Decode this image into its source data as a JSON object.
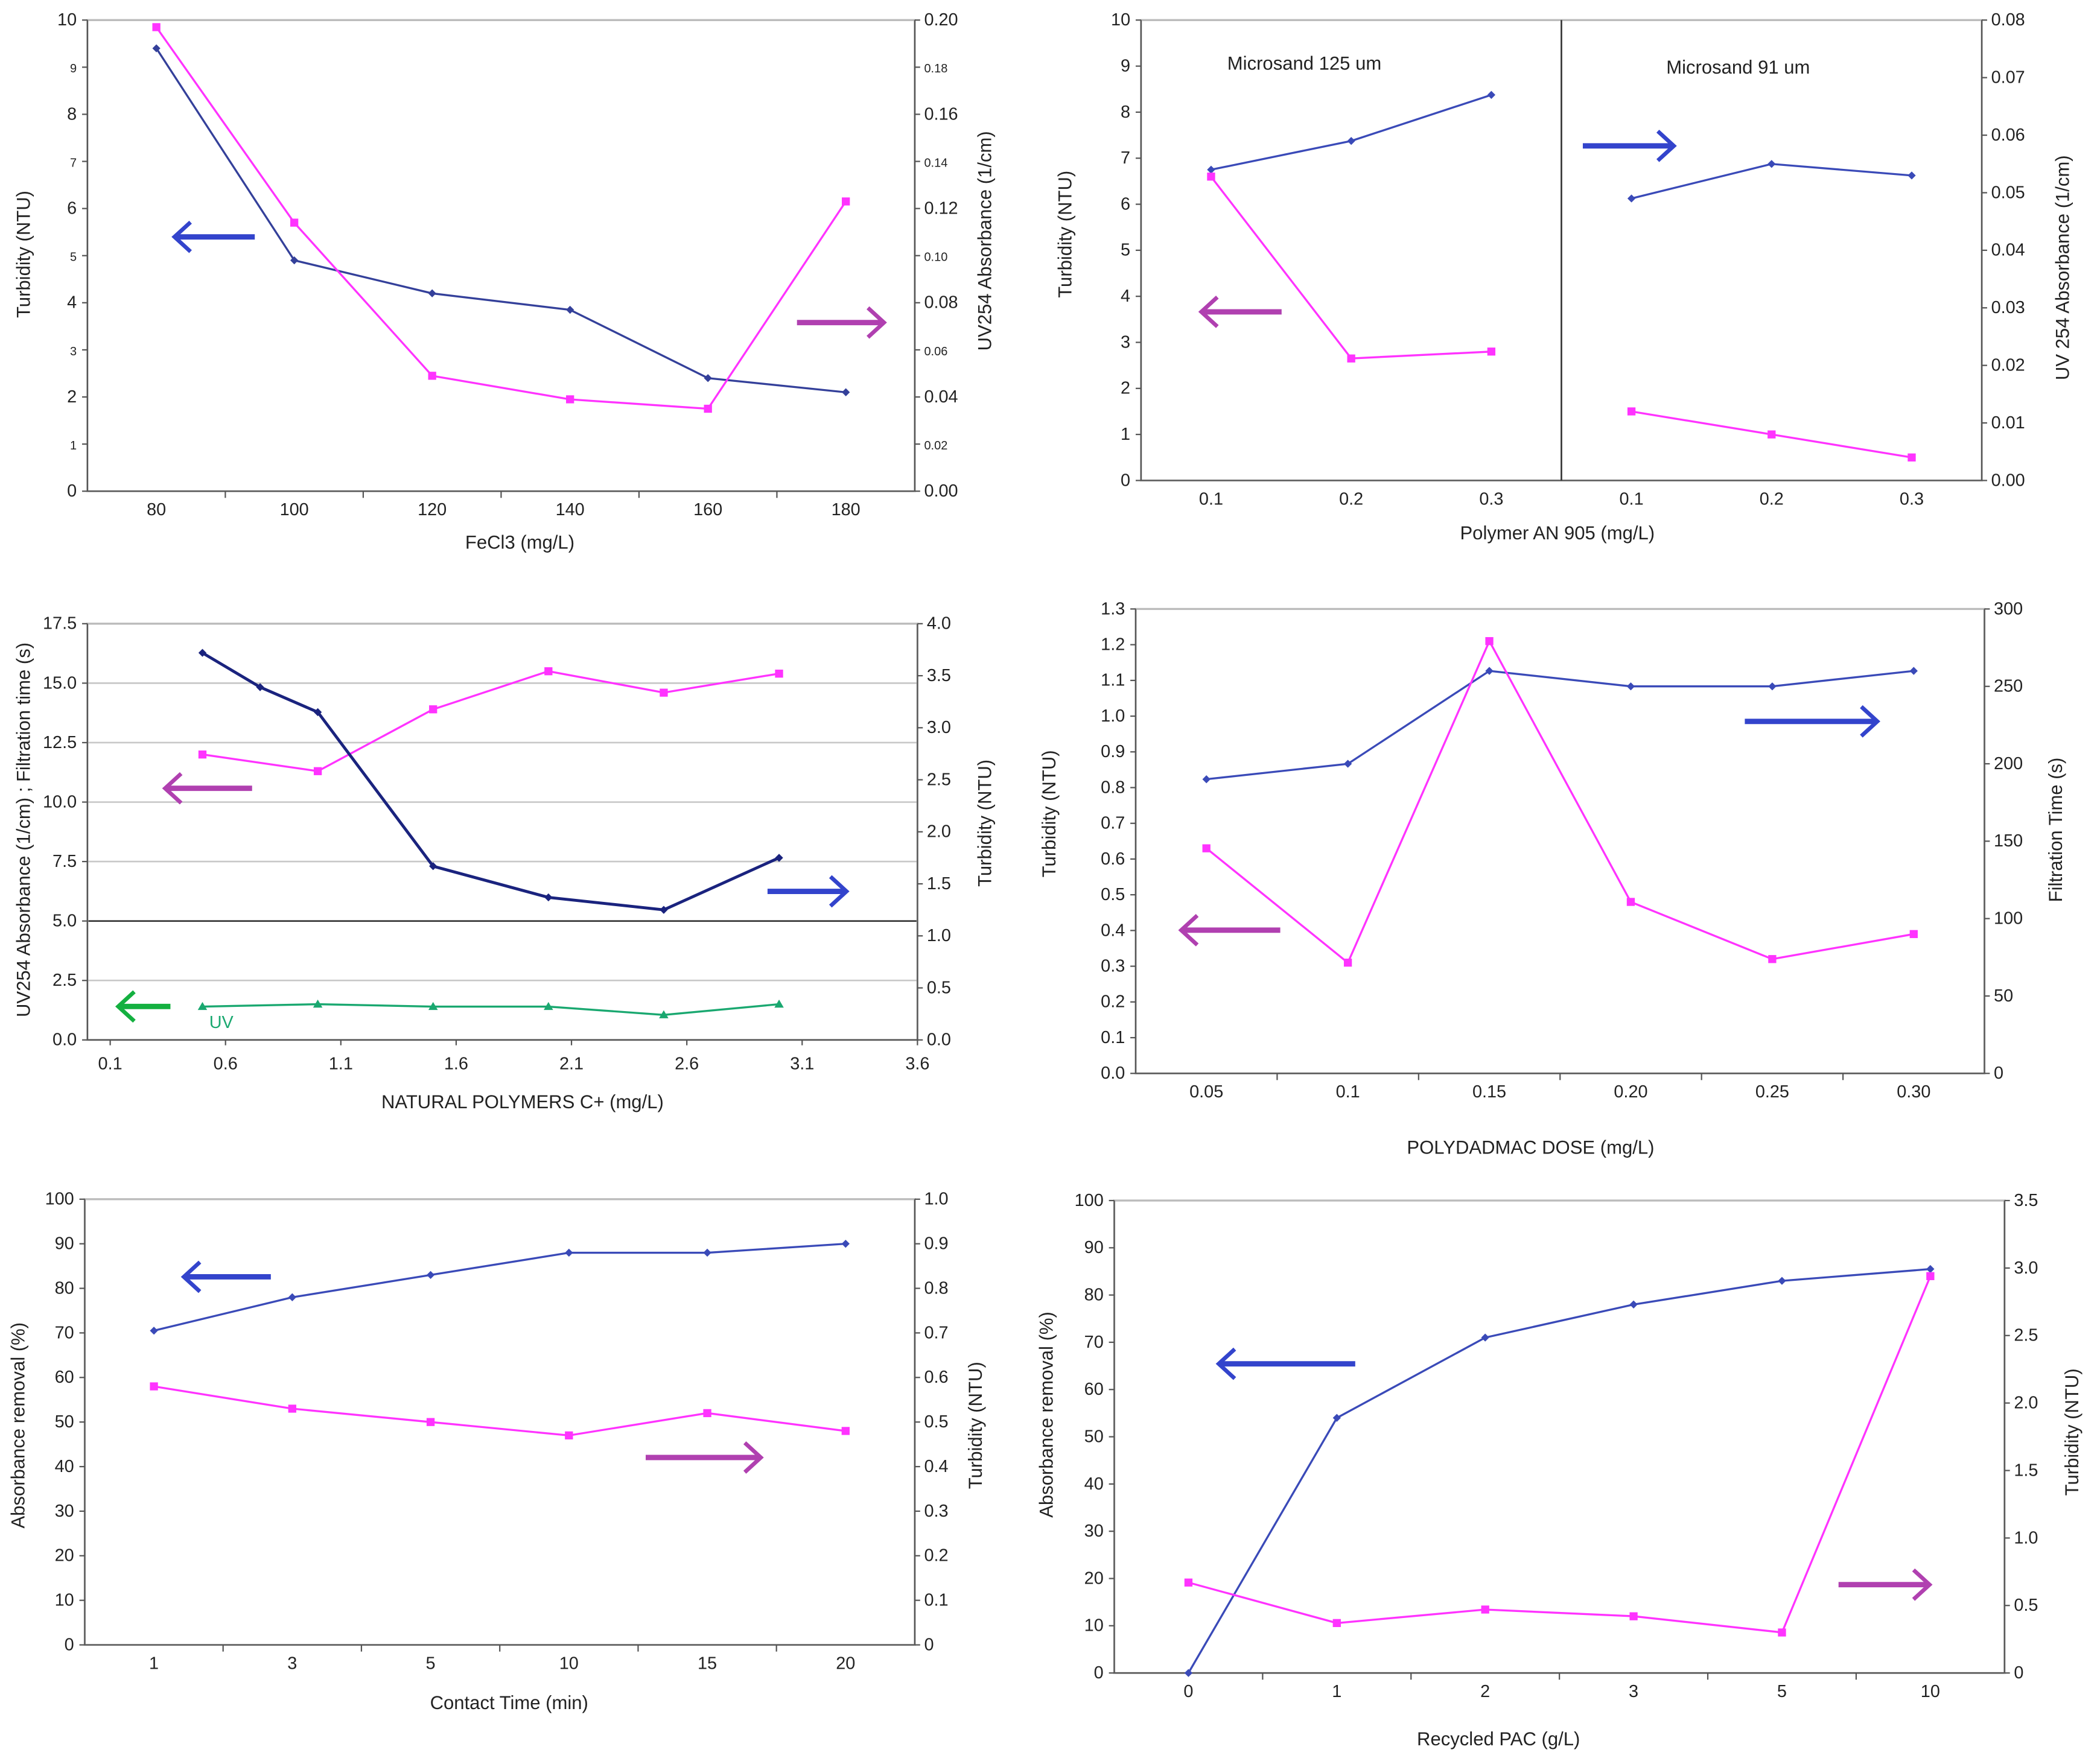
{
  "chart_data": [
    {
      "id": "c1",
      "type": "line",
      "xlabel": "FeCl3 (mg/L)",
      "ylabel": "Turbidity (NTU)",
      "y2label": "UV254 Absorbance (1/cm)",
      "xtype": "category",
      "categories": [
        "80",
        "100",
        "120",
        "140",
        "160",
        "180"
      ],
      "ylim": [
        0,
        10
      ],
      "y2lim": [
        0,
        0.2
      ],
      "yticks": [
        "0",
        "1",
        "2",
        "3",
        "4",
        "5",
        "6",
        "7",
        "8",
        "9",
        "10"
      ],
      "y2ticks": [
        "0.00",
        "0.02",
        "0.04",
        "0.06",
        "0.08",
        "0.10",
        "0.12",
        "0.14",
        "0.16",
        "0.18",
        "0.20"
      ],
      "series": [
        {
          "axis": "left",
          "color": "#34409a",
          "marker": "diamond",
          "values": [
            9.4,
            4.9,
            4.2,
            3.85,
            2.4,
            2.1
          ]
        },
        {
          "axis": "right",
          "color": "#ff33ff",
          "marker": "square",
          "values": [
            0.197,
            0.114,
            0.049,
            0.039,
            0.035,
            0.123
          ]
        }
      ],
      "arrows": [
        {
          "direction": "left",
          "color": "#3344cc"
        },
        {
          "direction": "right",
          "color": "#b040b0"
        }
      ]
    },
    {
      "id": "c2",
      "type": "line",
      "xlabel": "Polymer AN 905 (mg/L)",
      "ylabel": "Turbidity (NTU)",
      "y2label": "UV 254 Absorbance (1/cm)",
      "xtype": "category",
      "categories": [
        "0.1",
        "0.2",
        "0.3",
        "0.1",
        "0.2",
        "0.3"
      ],
      "panels": [
        "Microsand 125 um",
        "Microsand 91 um"
      ],
      "ylim": [
        0,
        10
      ],
      "y2lim": [
        0,
        0.08
      ],
      "yticks": [
        "0",
        "1",
        "2",
        "3",
        "4",
        "5",
        "6",
        "7",
        "8",
        "9",
        "10"
      ],
      "y2ticks": [
        "0.00",
        "0.01",
        "0.02",
        "0.03",
        "0.04",
        "0.05",
        "0.06",
        "0.07",
        "0.08"
      ],
      "series": [
        {
          "axis": "right",
          "color": "#3a4ab8",
          "marker": "diamond",
          "segments": [
            [
              0,
              1,
              2
            ],
            [
              3,
              4,
              5
            ]
          ],
          "values": [
            0.054,
            0.059,
            0.067,
            0.049,
            0.055,
            0.053
          ]
        },
        {
          "axis": "left",
          "color": "#ff33ff",
          "marker": "square",
          "segments": [
            [
              0,
              1,
              2
            ],
            [
              3,
              4,
              5
            ]
          ],
          "values": [
            6.6,
            2.65,
            2.8,
            1.5,
            1.0,
            0.5
          ]
        }
      ],
      "arrows": [
        {
          "direction": "right",
          "color": "#3344cc"
        },
        {
          "direction": "left",
          "color": "#b040b0"
        }
      ]
    },
    {
      "id": "c3",
      "type": "line",
      "xlabel": "NATURAL POLYMERS C+ (mg/L)",
      "ylabel": "UV254 Absorbance (1/cm) ; Filtration time (s)",
      "y2label": "Turbidity (NTU)",
      "xtype": "numeric",
      "xlim": [
        0.1,
        3.6
      ],
      "xticks": [
        "0.1",
        "0.6",
        "1.1",
        "1.6",
        "2.1",
        "2.6",
        "3.1",
        "3.6"
      ],
      "ylim": [
        0,
        17.5
      ],
      "y2lim": [
        0,
        4.0
      ],
      "grid": true,
      "yticks": [
        "0.0",
        "2.5",
        "5.0",
        "7.5",
        "10.0",
        "12.5",
        "15.0",
        "17.5"
      ],
      "y2ticks": [
        "0.0",
        "0.5",
        "1.0",
        "1.5",
        "2.0",
        "2.5",
        "3.0",
        "3.5",
        "4.0"
      ],
      "series_label": "UV",
      "series": [
        {
          "axis": "left",
          "color": "#ff33ff",
          "marker": "square",
          "x": [
            0.5,
            1.0,
            1.5,
            2.0,
            2.5,
            3.0
          ],
          "values": [
            12.0,
            11.3,
            13.9,
            15.5,
            14.6,
            15.4
          ]
        },
        {
          "axis": "right",
          "color": "#1a237e",
          "marker": "diamond",
          "x": [
            0.5,
            0.75,
            1.0,
            1.5,
            2.0,
            2.5,
            3.0
          ],
          "values": [
            3.72,
            3.39,
            3.15,
            1.67,
            1.37,
            1.25,
            1.75
          ]
        },
        {
          "axis": "left",
          "color": "#1aa870",
          "marker": "triangle",
          "x": [
            0.5,
            1.0,
            1.5,
            2.0,
            2.5,
            3.0
          ],
          "values": [
            1.4,
            1.5,
            1.4,
            1.4,
            1.05,
            1.5
          ]
        }
      ],
      "arrows": [
        {
          "direction": "left",
          "color": "#b040b0"
        },
        {
          "direction": "right",
          "color": "#3344cc"
        },
        {
          "direction": "left",
          "color": "#14b040"
        }
      ]
    },
    {
      "id": "c4",
      "type": "line",
      "xlabel": "POLYDADMAC DOSE (mg/L)",
      "ylabel": "Turbidity (NTU)",
      "y2label": "Filtration Time (s)",
      "xtype": "category",
      "categories": [
        "0.05",
        "0.1",
        "0.15",
        "0.20",
        "0.25",
        "0.30"
      ],
      "ylim": [
        0,
        1.3
      ],
      "y2lim": [
        0,
        300
      ],
      "yticks": [
        "0.0",
        "0.1",
        "0.2",
        "0.3",
        "0.4",
        "0.5",
        "0.6",
        "0.7",
        "0.8",
        "0.9",
        "1.0",
        "1.1",
        "1.2",
        "1.3"
      ],
      "y2ticks": [
        "0",
        "50",
        "100",
        "150",
        "200",
        "250",
        "300"
      ],
      "series": [
        {
          "axis": "right",
          "color": "#3a4ab8",
          "marker": "diamond",
          "values": [
            190,
            200,
            260,
            250,
            250,
            260
          ]
        },
        {
          "axis": "left",
          "color": "#ff33ff",
          "marker": "square",
          "values": [
            0.63,
            0.31,
            1.21,
            0.48,
            0.32,
            0.39
          ]
        }
      ],
      "arrows": [
        {
          "direction": "right",
          "color": "#3344cc"
        },
        {
          "direction": "left",
          "color": "#b040b0"
        }
      ]
    },
    {
      "id": "c5",
      "type": "line",
      "xlabel": "Contact Time (min)",
      "ylabel": "Absorbance removal (%)",
      "y2label": "Turbidity (NTU)",
      "xtype": "category",
      "categories": [
        "1",
        "3",
        "5",
        "10",
        "15",
        "20"
      ],
      "ylim": [
        0,
        100
      ],
      "y2lim": [
        0,
        1.0
      ],
      "yticks": [
        "0",
        "10",
        "20",
        "30",
        "40",
        "50",
        "60",
        "70",
        "80",
        "90",
        "100"
      ],
      "y2ticks": [
        "0",
        "0.1",
        "0.2",
        "0.3",
        "0.4",
        "0.5",
        "0.6",
        "0.7",
        "0.8",
        "0.9",
        "1.0"
      ],
      "series": [
        {
          "axis": "left",
          "color": "#3a4ab8",
          "marker": "diamond",
          "values": [
            70.5,
            78,
            83,
            88,
            88,
            90
          ]
        },
        {
          "axis": "right",
          "color": "#ff33ff",
          "marker": "square",
          "values": [
            0.58,
            0.53,
            0.5,
            0.47,
            0.52,
            0.48
          ]
        }
      ],
      "arrows": [
        {
          "direction": "left",
          "color": "#3344cc"
        },
        {
          "direction": "right",
          "color": "#b040b0"
        }
      ]
    },
    {
      "id": "c6",
      "type": "line",
      "xlabel": "Recycled PAC (g/L)",
      "ylabel": "Absorbance removal (%)",
      "y2label": "Turbidity (NTU)",
      "xtype": "category",
      "categories": [
        "0",
        "1",
        "2",
        "3",
        "5",
        "10"
      ],
      "ylim": [
        0,
        100
      ],
      "y2lim": [
        0,
        3.5
      ],
      "yticks": [
        "0",
        "10",
        "20",
        "30",
        "40",
        "50",
        "60",
        "70",
        "80",
        "90",
        "100"
      ],
      "y2ticks": [
        "0",
        "0.5",
        "1.0",
        "1.5",
        "2.0",
        "2.5",
        "3.0",
        "3.5"
      ],
      "series": [
        {
          "axis": "left",
          "color": "#3a4ab8",
          "marker": "diamond",
          "values": [
            0,
            54,
            71,
            78,
            83,
            85.5
          ]
        },
        {
          "axis": "right",
          "color": "#ff33ff",
          "marker": "square",
          "values": [
            0.67,
            0.37,
            0.47,
            0.42,
            0.3,
            2.94
          ]
        }
      ],
      "arrows": [
        {
          "direction": "left",
          "color": "#3344cc"
        },
        {
          "direction": "right",
          "color": "#b040b0"
        }
      ]
    }
  ]
}
